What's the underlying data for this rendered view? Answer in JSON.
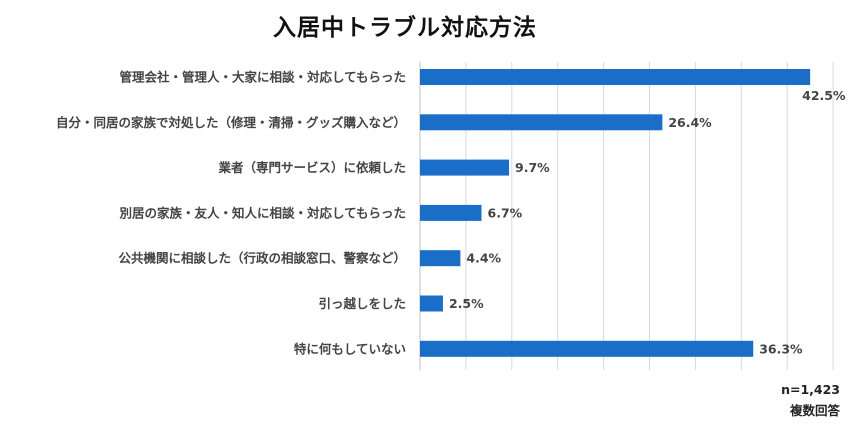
{
  "chart_data": {
    "type": "bar",
    "orientation": "horizontal",
    "title": "入居中トラブル対応方法",
    "categories": [
      "管理会社・管理人・大家に相談・対応してもらった",
      "自分・同居の家族で対処した（修理・清掃・グッズ購入など）",
      "業者（専門サービス）に依頼した",
      "別居の家族・友人・知人に相談・対応してもらった",
      "公共機関に相談した（行政の相談窓口、警察など）",
      "引っ越しをした",
      "特に何もしていない"
    ],
    "values": [
      42.5,
      26.4,
      9.7,
      6.7,
      4.4,
      2.5,
      36.3
    ],
    "value_labels": [
      "42.5%",
      "26.4%",
      "9.7%",
      "6.7%",
      "4.4%",
      "2.5%",
      "36.3%"
    ],
    "unit": "%",
    "xlim": [
      0,
      45
    ],
    "grid": true,
    "bar_color": "#1a6ec8"
  },
  "notes": {
    "sample": "n=1,423",
    "multiple": "複数回答"
  }
}
